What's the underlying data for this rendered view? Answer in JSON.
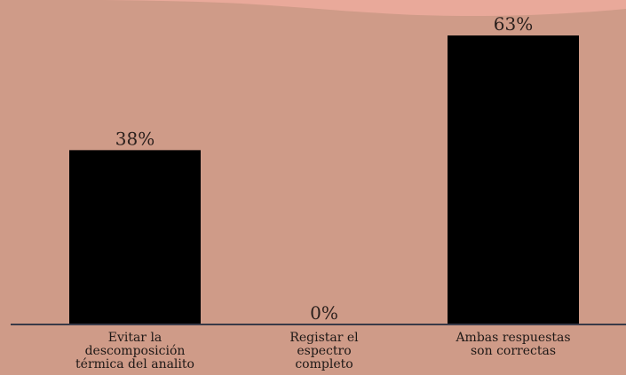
{
  "colors": {
    "background": "#cf9b88",
    "top_band": "#e9a99a",
    "bar": "#000000",
    "axis": "#3a3a48",
    "text": "#2a1f1c"
  },
  "chart_data": {
    "type": "bar",
    "categories": [
      [
        "Evitar la",
        "descomposición",
        "térmica del analito"
      ],
      [
        "Registar el",
        "espectro",
        "completo"
      ],
      [
        "Ambas respuestas",
        "son correctas"
      ]
    ],
    "values": [
      38,
      0,
      63
    ],
    "value_labels": [
      "38%",
      "0%",
      "63%"
    ],
    "ylim": [
      0,
      63
    ],
    "grid": false,
    "legend": "none"
  }
}
